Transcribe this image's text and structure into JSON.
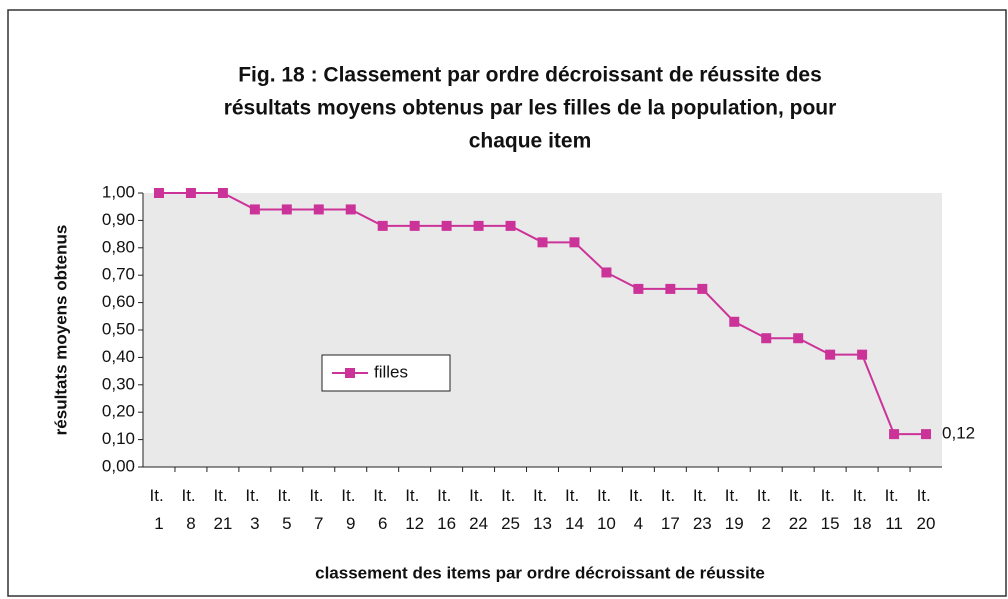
{
  "chart_data": {
    "type": "line",
    "title": [
      "Fig. 18 : Classement par ordre décroissant de réussite des",
      "résultats moyens obtenus par les filles de la population, pour",
      "chaque item"
    ],
    "x_label": "classement des items par ordre décroissant de réussite",
    "y_label": "résultats moyens obtenus",
    "categories": [
      "It. 1",
      "It. 8",
      "It. 21",
      "It. 3",
      "It. 5",
      "It. 7",
      "It. 9",
      "It. 6",
      "It. 12",
      "It. 16",
      "It. 24",
      "It. 25",
      "It. 13",
      "It. 14",
      "It. 10",
      "It. 4",
      "It. 17",
      "It. 23",
      "It. 19",
      "It. 2",
      "It. 22",
      "It. 15",
      "It. 18",
      "It. 11",
      "It. 20"
    ],
    "series": [
      {
        "name": "filles",
        "color": "#cc3399",
        "values": [
          1,
          1,
          1,
          0.94,
          0.94,
          0.94,
          0.94,
          0.88,
          0.88,
          0.88,
          0.88,
          0.88,
          0.82,
          0.82,
          0.71,
          0.65,
          0.65,
          0.65,
          0.53,
          0.47,
          0.47,
          0.41,
          0.41,
          0.12,
          0.12
        ],
        "value_labels": [
          null,
          null,
          null,
          null,
          null,
          null,
          null,
          null,
          null,
          null,
          null,
          null,
          null,
          null,
          null,
          null,
          null,
          null,
          null,
          null,
          null,
          null,
          null,
          null,
          "0,12"
        ]
      }
    ],
    "ylim": [
      0,
      1
    ],
    "yticks": [
      {
        "value": 0,
        "label": "0,00"
      },
      {
        "value": 0.1,
        "label": "0,10"
      },
      {
        "value": 0.2,
        "label": "0,20"
      },
      {
        "value": 0.3,
        "label": "0,30"
      },
      {
        "value": 0.4,
        "label": "0,40"
      },
      {
        "value": 0.5,
        "label": "0,50"
      },
      {
        "value": 0.6,
        "label": "0,60"
      },
      {
        "value": 0.7,
        "label": "0,70"
      },
      {
        "value": 0.8,
        "label": "0,80"
      },
      {
        "value": 0.9,
        "label": "0,90"
      },
      {
        "value": 1,
        "label": "1,00"
      }
    ],
    "grid": false,
    "legend": "center"
  }
}
